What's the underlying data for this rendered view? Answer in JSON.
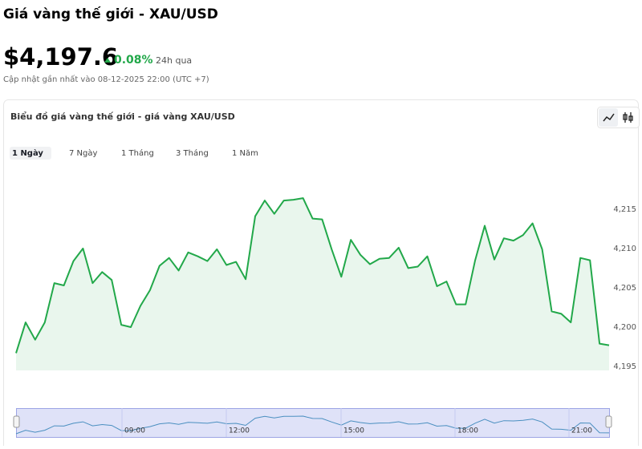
{
  "header": {
    "title": "Giá vàng thế giới - XAU/USD",
    "price": "$4,197.6",
    "change": "0.08%",
    "period": "24h qua",
    "updated": "Cập nhật gần nhất vào 08-12-2025 22:00 (UTC +7)"
  },
  "card": {
    "title": "Biểu đồ giá vàng thế giới - giá vàng XAU/USD",
    "tabs": [
      "1 Ngày",
      "7 Ngày",
      "1 Tháng",
      "3 Tháng",
      "1 Năm"
    ]
  },
  "chart_data": {
    "type": "area",
    "color": "#22a84a",
    "fill": "#e9f6ed",
    "values": [
      4196.6,
      4200.5,
      4198.3,
      4200.5,
      4205.5,
      4205.2,
      4208.3,
      4209.9,
      4205.5,
      4206.9,
      4205.9,
      4200.2,
      4199.9,
      4202.6,
      4204.6,
      4207.7,
      4208.7,
      4207.1,
      4209.4,
      4208.9,
      4208.3,
      4209.8,
      4207.8,
      4208.2,
      4206.0,
      4214.0,
      4216.0,
      4214.3,
      4216.0,
      4216.1,
      4216.3,
      4213.7,
      4213.6,
      4209.8,
      4206.3,
      4211.0,
      4209.1,
      4207.9,
      4208.6,
      4208.7,
      4210.0,
      4207.4,
      4207.6,
      4208.9,
      4205.1,
      4205.7,
      4202.8,
      4202.8,
      4208.4,
      4212.8,
      4208.5,
      4211.2,
      4210.9,
      4211.6,
      4213.1,
      4209.8,
      4201.9,
      4201.6,
      4200.5,
      4208.7,
      4208.4,
      4197.8,
      4197.6
    ],
    "ylim": [
      4194.4,
      4221
    ],
    "yticks": [
      {
        "value": 4195,
        "label": "4,195"
      },
      {
        "value": 4200,
        "label": "4,200"
      },
      {
        "value": 4205,
        "label": "4,205"
      },
      {
        "value": 4210,
        "label": "4,210"
      },
      {
        "value": 4215,
        "label": "4,215"
      }
    ],
    "navigator_labels": [
      "09:00",
      "12:00",
      "15:00",
      "18:00",
      "21:00"
    ]
  }
}
